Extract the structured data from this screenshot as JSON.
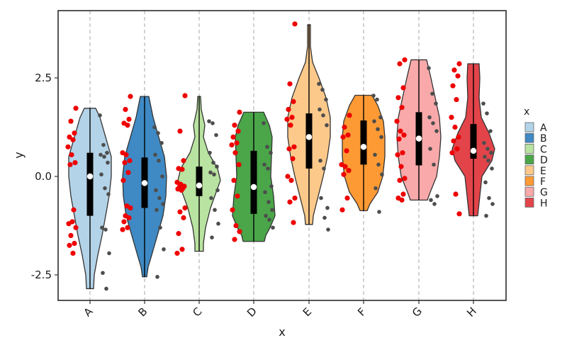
{
  "chart_data": {
    "type": "violin",
    "title": "",
    "xlabel": "x",
    "ylabel": "y",
    "ylim": [
      -3.1,
      4.25
    ],
    "yticks": [
      -2.5,
      0.0,
      2.5
    ],
    "ytick_labels": [
      "-2.5",
      "0.0",
      "2.5"
    ],
    "categories": [
      "A",
      "B",
      "C",
      "D",
      "E",
      "F",
      "G",
      "H"
    ],
    "grid": "vertical dashed lines at categories",
    "legend": {
      "title": "x",
      "position": "right",
      "entries": [
        {
          "label": "A",
          "color": "#b3d3e8"
        },
        {
          "label": "B",
          "color": "#3f8ac4"
        },
        {
          "label": "C",
          "color": "#b9e3a0"
        },
        {
          "label": "D",
          "color": "#4aa648"
        },
        {
          "label": "E",
          "color": "#fdc98a"
        },
        {
          "label": "F",
          "color": "#fd9a34"
        },
        {
          "label": "G",
          "color": "#f9a9aa"
        },
        {
          "label": "H",
          "color": "#e2444a"
        }
      ]
    },
    "series": [
      {
        "name": "A",
        "color": "#b3d3e8",
        "min": -2.85,
        "q1": -1.0,
        "median": 0.0,
        "q3": 0.6,
        "max": 1.73,
        "shape": [
          [
            1.73,
            8
          ],
          [
            1.5,
            14
          ],
          [
            1.0,
            22
          ],
          [
            0.5,
            30
          ],
          [
            0.0,
            30
          ],
          [
            -0.5,
            27
          ],
          [
            -1.0,
            22
          ],
          [
            -1.5,
            17
          ],
          [
            -2.0,
            11
          ],
          [
            -2.5,
            6
          ],
          [
            -2.85,
            5
          ]
        ]
      },
      {
        "name": "B",
        "color": "#3f8ac4",
        "min": -2.55,
        "q1": -0.8,
        "median": -0.17,
        "q3": 0.48,
        "max": 2.03,
        "shape": [
          [
            2.03,
            6
          ],
          [
            1.5,
            12
          ],
          [
            1.0,
            20
          ],
          [
            0.5,
            28
          ],
          [
            0.0,
            31
          ],
          [
            -0.5,
            30
          ],
          [
            -1.0,
            26
          ],
          [
            -1.5,
            18
          ],
          [
            -2.0,
            10
          ],
          [
            -2.3,
            5
          ],
          [
            -2.55,
            3
          ]
        ]
      },
      {
        "name": "C",
        "color": "#b9e3a0",
        "min": -1.9,
        "q1": -0.5,
        "median": -0.23,
        "q3": 0.25,
        "max": 2.03,
        "shape": [
          [
            2.03,
            2
          ],
          [
            1.7,
            3
          ],
          [
            1.3,
            8
          ],
          [
            1.0,
            6
          ],
          [
            0.6,
            13
          ],
          [
            0.2,
            26
          ],
          [
            -0.1,
            30
          ],
          [
            -0.4,
            24
          ],
          [
            -0.8,
            16
          ],
          [
            -1.3,
            9
          ],
          [
            -1.7,
            6
          ],
          [
            -1.9,
            6
          ]
        ]
      },
      {
        "name": "D",
        "color": "#4aa648",
        "min": -1.65,
        "q1": -0.95,
        "median": -0.27,
        "q3": 0.65,
        "max": 1.63,
        "shape": [
          [
            1.63,
            14
          ],
          [
            1.3,
            22
          ],
          [
            1.0,
            26
          ],
          [
            0.5,
            25
          ],
          [
            0.0,
            24
          ],
          [
            -0.5,
            28
          ],
          [
            -1.0,
            30
          ],
          [
            -1.3,
            23
          ],
          [
            -1.5,
            17
          ],
          [
            -1.65,
            15
          ]
        ]
      },
      {
        "name": "E",
        "color": "#fdc98a",
        "min": -1.22,
        "q1": 0.2,
        "median": 1.0,
        "q3": 1.6,
        "max": 3.85,
        "shape": [
          [
            3.85,
            2
          ],
          [
            3.3,
            2
          ],
          [
            2.9,
            5
          ],
          [
            2.5,
            14
          ],
          [
            2.0,
            24
          ],
          [
            1.5,
            30
          ],
          [
            1.0,
            30
          ],
          [
            0.5,
            26
          ],
          [
            0.0,
            20
          ],
          [
            -0.5,
            13
          ],
          [
            -1.0,
            6
          ],
          [
            -1.22,
            5
          ]
        ]
      },
      {
        "name": "F",
        "color": "#fd9a34",
        "min": -0.87,
        "q1": 0.3,
        "median": 0.75,
        "q3": 1.42,
        "max": 2.06,
        "shape": [
          [
            2.06,
            12
          ],
          [
            1.8,
            20
          ],
          [
            1.4,
            28
          ],
          [
            1.0,
            30
          ],
          [
            0.5,
            30
          ],
          [
            0.0,
            27
          ],
          [
            -0.4,
            20
          ],
          [
            -0.7,
            9
          ],
          [
            -0.87,
            5
          ]
        ]
      },
      {
        "name": "G",
        "color": "#f9a9aa",
        "min": -0.6,
        "q1": 0.28,
        "median": 0.96,
        "q3": 1.63,
        "max": 2.96,
        "shape": [
          [
            2.96,
            11
          ],
          [
            2.5,
            17
          ],
          [
            2.0,
            23
          ],
          [
            1.5,
            29
          ],
          [
            1.0,
            31
          ],
          [
            0.5,
            29
          ],
          [
            0.0,
            25
          ],
          [
            -0.4,
            16
          ],
          [
            -0.6,
            12
          ]
        ]
      },
      {
        "name": "H",
        "color": "#e2444a",
        "min": -1.0,
        "q1": 0.45,
        "median": 0.65,
        "q3": 1.33,
        "max": 2.86,
        "shape": [
          [
            2.86,
            8
          ],
          [
            2.5,
            9
          ],
          [
            2.0,
            8
          ],
          [
            1.5,
            11
          ],
          [
            1.1,
            22
          ],
          [
            0.7,
            30
          ],
          [
            0.4,
            26
          ],
          [
            0.0,
            12
          ],
          [
            -0.5,
            9
          ],
          [
            -1.0,
            6
          ]
        ]
      }
    ],
    "raw_points_left": {
      "A": [
        1.73,
        1.4,
        1.1,
        1.0,
        0.93,
        0.75,
        0.55,
        0.35,
        0.3,
        -0.85,
        -1.2,
        -1.15,
        -1.3,
        -1.5,
        -1.7,
        -1.75,
        -1.95
      ],
      "B": [
        2.03,
        1.7,
        1.45,
        1.35,
        1.3,
        0.6,
        0.55,
        0.4,
        0.35,
        0.1,
        -0.1,
        -0.75,
        -0.8,
        -1.0,
        -1.05,
        -1.15,
        -1.3,
        -1.35
      ],
      "C": [
        2.05,
        1.15,
        0.4,
        0.2,
        0.18,
        -0.15,
        -0.2,
        -0.25,
        -0.27,
        -0.3,
        -0.32,
        -0.35,
        -0.8,
        -0.9,
        -1.05,
        -1.45,
        -1.85,
        -1.95
      ],
      "D": [
        1.63,
        1.3,
        1.15,
        1.0,
        0.85,
        0.8,
        0.6,
        0.3,
        -0.1,
        -0.5,
        -0.85,
        -1.25,
        -1.4,
        -1.6
      ],
      "E": [
        3.87,
        2.35,
        1.9,
        1.7,
        1.5,
        1.45,
        1.3,
        0.75,
        0.7,
        0.45,
        0.0,
        -0.1,
        -0.55,
        -0.65,
        -1.17
      ],
      "F": [
        1.55,
        1.25,
        1.05,
        1.0,
        0.65,
        0.3,
        0.25,
        0.15,
        0.05,
        -0.55,
        -0.85
      ],
      "G": [
        2.96,
        2.86,
        2.25,
        2.0,
        1.75,
        1.4,
        1.15,
        1.05,
        0.95,
        0.6,
        0.55,
        0.25,
        -0.05,
        -0.1,
        -0.45,
        -0.55,
        -0.6
      ],
      "H": [
        2.86,
        2.7,
        2.55,
        2.3,
        1.95,
        1.5,
        1.25,
        1.0,
        0.9,
        0.7,
        0.6,
        -0.45,
        -0.95
      ]
    },
    "raw_points_right": {
      "A": [
        1.55,
        0.8,
        0.6,
        0.55,
        0.5,
        0.35,
        0.05,
        -0.3,
        -0.45,
        -1.3,
        -1.35,
        -1.95,
        -2.45,
        -2.85
      ],
      "B": [
        1.25,
        1.1,
        0.85,
        0.55,
        0.4,
        -0.0,
        -0.35,
        -0.55,
        -0.7,
        -0.85,
        -1.3,
        -1.85,
        -2.55
      ],
      "C": [
        1.4,
        1.35,
        1.05,
        0.6,
        0.35,
        0.25,
        0.1,
        0.05,
        -0.35,
        -0.55,
        -0.85,
        -1.2,
        -1.55
      ],
      "D": [
        1.35,
        0.75,
        0.6,
        0.3,
        0.2,
        -0.25,
        -0.4,
        -0.65,
        -0.85,
        -1.0,
        -1.1,
        -1.3
      ],
      "E": [
        2.35,
        2.2,
        1.95,
        1.7,
        1.55,
        1.3,
        0.4,
        0.2,
        -0.8,
        -0.55,
        -1.05,
        -1.35
      ],
      "F": [
        2.05,
        1.95,
        1.5,
        1.4,
        1.2,
        1.0,
        0.55,
        0.3,
        0.05,
        -0.3,
        -0.9
      ],
      "G": [
        2.75,
        2.1,
        1.85,
        1.5,
        1.35,
        1.15,
        0.7,
        0.3,
        -0.5,
        -0.6,
        -0.7
      ],
      "H": [
        1.85,
        1.6,
        1.15,
        0.85,
        0.7,
        0.6,
        0.5,
        0.4,
        0.2,
        -0.15,
        -0.55,
        -0.7,
        -1.0
      ]
    }
  },
  "axes": {
    "x_title": "x",
    "y_title": "y"
  }
}
